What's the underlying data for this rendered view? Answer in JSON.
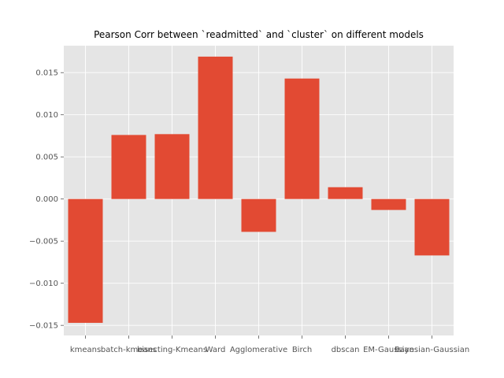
{
  "chart_data": {
    "type": "bar",
    "title": "Pearson Corr between `readmitted` and `cluster` on different models",
    "xlabel": "",
    "ylabel": "",
    "categories": [
      "kmeans",
      "batch-kmeans",
      "bisecting-Kmeans",
      "Ward",
      "Agglomerative",
      "Birch",
      "dbscan",
      "EM-Gaussian",
      "Bayesian-Gaussian"
    ],
    "values": [
      -0.0147,
      0.0076,
      0.0077,
      0.0169,
      -0.0039,
      0.0143,
      0.0014,
      -0.0013,
      -0.0067
    ],
    "ylim": [
      -0.0162,
      0.0182
    ],
    "yticks": [
      -0.015,
      -0.01,
      -0.005,
      0.0,
      0.005,
      0.01,
      0.015
    ],
    "ytick_labels": [
      "−0.015",
      "−0.010",
      "−0.005",
      "0.000",
      "0.005",
      "0.010",
      "0.015"
    ],
    "grid": true,
    "colors": {
      "bar": "#E24A33",
      "background": "#E5E5E5",
      "grid": "#FFFFFF"
    }
  }
}
